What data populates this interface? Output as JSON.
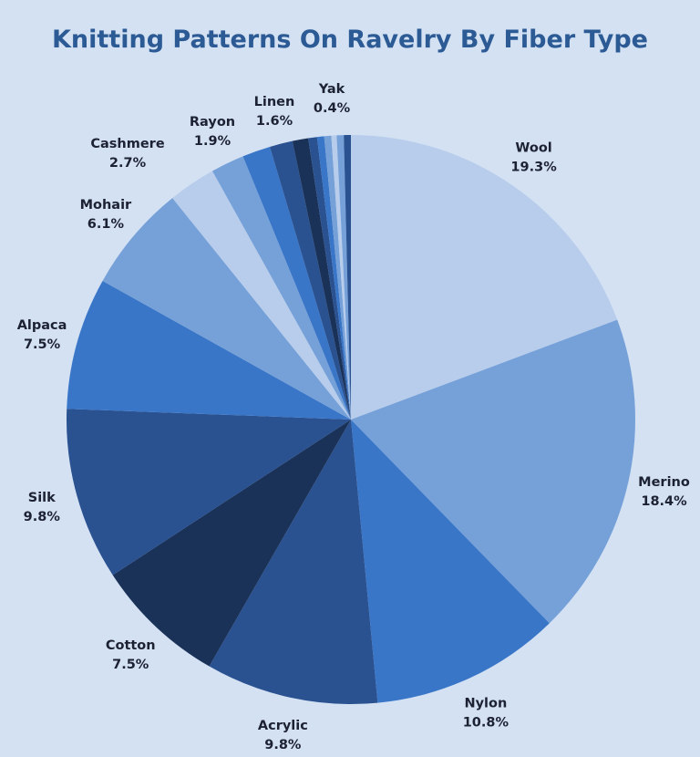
{
  "chart_data": {
    "type": "pie",
    "title": "Knitting Patterns On Ravelry By Fiber Type",
    "start": "top",
    "direction": "clockwise",
    "slices": [
      {
        "label": "Wool",
        "value": 19.3,
        "text": "19.3%",
        "color": "#b8cdec"
      },
      {
        "label": "Merino",
        "value": 18.4,
        "text": "18.4%",
        "color": "#76a1d8"
      },
      {
        "label": "Nylon",
        "value": 10.8,
        "text": "10.8%",
        "color": "#3a76c8"
      },
      {
        "label": "Acrylic",
        "value": 9.8,
        "text": "9.8%",
        "color": "#2a5190"
      },
      {
        "label": "Cotton",
        "value": 7.5,
        "text": "7.5%",
        "color": "#1b3258"
      },
      {
        "label": "Silk",
        "value": 9.8,
        "text": "9.8%",
        "color": "#2a5190"
      },
      {
        "label": "Alpaca",
        "value": 7.5,
        "text": "7.5%",
        "color": "#3a76c8"
      },
      {
        "label": "Mohair",
        "value": 6.1,
        "text": "6.1%",
        "color": "#76a1d8"
      },
      {
        "label": "Cashmere",
        "value": 2.7,
        "text": "2.7%",
        "color": "#b8cdec"
      },
      {
        "label": "Rayon",
        "value": 1.9,
        "text": "1.9%",
        "color": "#76a1d8"
      },
      {
        "label": "Linen",
        "value": 1.6,
        "text": "1.6%",
        "color": "#3a76c8"
      },
      {
        "label": "",
        "value": 1.3,
        "text": "",
        "color": "#2a5190"
      },
      {
        "label": "",
        "value": 0.9,
        "text": "",
        "color": "#1b3258"
      },
      {
        "label": "",
        "value": 0.5,
        "text": "",
        "color": "#2a5190"
      },
      {
        "label": "",
        "value": 0.4,
        "text": "",
        "color": "#3a76c8"
      },
      {
        "label": "",
        "value": 0.4,
        "text": "",
        "color": "#76a1d8"
      },
      {
        "label": "",
        "value": 0.3,
        "text": "",
        "color": "#b8cdec"
      },
      {
        "label": "",
        "value": 0.4,
        "text": "",
        "color": "#76a1d8"
      },
      {
        "label": "Yak",
        "value": 0.4,
        "text": "0.4%",
        "color": "#2a5190"
      }
    ]
  }
}
